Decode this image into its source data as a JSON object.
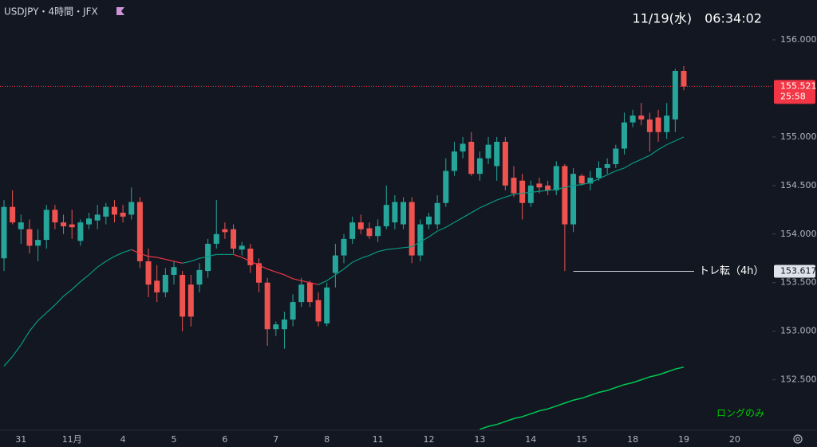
{
  "chart_data": {
    "type": "candlestick",
    "title": "USDJPY・4時間・JFX",
    "subtitle": "11/19(水)　06:34:02",
    "up_color": "#26a69a",
    "down_color": "#ef5350",
    "ylim": [
      151.98,
      156.41
    ],
    "yticks": [
      {
        "value": 152.5,
        "label": "152.500"
      },
      {
        "value": 153,
        "label": "153.000"
      },
      {
        "value": 153.5,
        "label": "153.500"
      },
      {
        "value": 154,
        "label": "154.000"
      },
      {
        "value": 154.5,
        "label": "154.500"
      },
      {
        "value": 155,
        "label": "155.000"
      },
      {
        "value": 156,
        "label": "156.000"
      }
    ],
    "x_labels": [
      "31",
      "11月",
      "4",
      "5",
      "6",
      "7",
      "8",
      "11",
      "12",
      "13",
      "14",
      "15",
      "18",
      "19",
      "20"
    ],
    "open": [
      153.75,
      154.28,
      154.05,
      154.05,
      153.88,
      153.94,
      154.25,
      154.12,
      154.1,
      153.93,
      154.1,
      154.14,
      154.18,
      154.28,
      154.22,
      154.2,
      154.33,
      153.72,
      153.52,
      153.4,
      153.58,
      153.58,
      153.48,
      153.48,
      153.62,
      153.9,
      154.05,
      154.05,
      153.84,
      153.85,
      153.7,
      153.5,
      153.02,
      153.02,
      153.12,
      153.3,
      153.5,
      153.32,
      153.08,
      153.6,
      153.78,
      153.95,
      154.12,
      154.06,
      153.98,
      154.08,
      154.12,
      154.1,
      154.33,
      153.78,
      154.1,
      154.1,
      154.32,
      154.65,
      154.85,
      154.95,
      154.62,
      154.78,
      154.7,
      154.95,
      154.58,
      154.55,
      154.32,
      154.52,
      154.5,
      154.45,
      154.7,
      154.1,
      154.6,
      154.52,
      154.58,
      154.68,
      154.72,
      154.88,
      155.15,
      155.22,
      155.18,
      155.2,
      155.05,
      155.18,
      155.68
    ],
    "high": [
      154.35,
      154.45,
      154.2,
      154.15,
      154.05,
      154.3,
      154.3,
      154.2,
      154.25,
      154.15,
      154.22,
      154.3,
      154.32,
      154.35,
      154.3,
      154.48,
      154.38,
      153.85,
      153.68,
      153.65,
      153.72,
      153.62,
      153.58,
      153.7,
      153.95,
      154.35,
      154.12,
      154.1,
      153.92,
      153.9,
      153.75,
      153.55,
      153.1,
      153.2,
      153.38,
      153.55,
      153.52,
      153.4,
      153.5,
      153.9,
      154.0,
      154.18,
      154.2,
      154.12,
      154.15,
      154.5,
      154.4,
      154.38,
      154.38,
      154.15,
      154.22,
      154.4,
      154.78,
      154.95,
      155.0,
      155.05,
      154.85,
      155.0,
      155.0,
      155.0,
      154.7,
      154.62,
      154.55,
      154.58,
      154.55,
      154.75,
      154.72,
      154.68,
      154.62,
      154.65,
      154.75,
      154.78,
      154.92,
      155.25,
      155.28,
      155.35,
      155.25,
      155.28,
      155.35,
      155.7,
      155.73
    ],
    "low": [
      153.62,
      154.1,
      153.9,
      153.8,
      153.72,
      153.85,
      154.05,
      154.0,
      153.95,
      153.88,
      154.05,
      154.05,
      154.1,
      154.12,
      154.12,
      154.15,
      153.65,
      153.35,
      153.3,
      153.35,
      153.48,
      153.0,
      153.05,
      153.4,
      153.55,
      153.85,
      153.95,
      153.8,
      153.78,
      153.6,
      153.4,
      152.85,
      152.95,
      152.82,
      153.05,
      153.25,
      153.25,
      153.05,
      153.05,
      153.45,
      153.7,
      153.9,
      154.0,
      153.95,
      153.92,
      154.05,
      154.05,
      154.05,
      153.7,
      153.72,
      154.05,
      154.05,
      154.28,
      154.6,
      154.78,
      154.6,
      154.55,
      154.72,
      154.55,
      154.45,
      154.38,
      154.15,
      154.28,
      154.42,
      154.4,
      154.4,
      153.62,
      154.02,
      154.5,
      154.45,
      154.55,
      154.62,
      154.68,
      154.82,
      155.1,
      155.12,
      154.85,
      154.95,
      154.98,
      155.05,
      155.48
    ],
    "close": [
      154.28,
      154.12,
      154.12,
      153.88,
      153.94,
      154.25,
      154.12,
      154.08,
      154.07,
      154.12,
      154.16,
      154.2,
      154.28,
      154.2,
      154.18,
      154.33,
      153.72,
      153.48,
      153.4,
      153.58,
      153.66,
      153.15,
      153.15,
      153.63,
      153.9,
      154.0,
      154.02,
      153.85,
      153.88,
      153.68,
      153.5,
      153.02,
      153.07,
      153.12,
      153.3,
      153.48,
      153.3,
      153.1,
      153.45,
      153.78,
      153.95,
      154.12,
      154.05,
      153.98,
      154.08,
      154.3,
      154.33,
      154.33,
      153.78,
      154.1,
      154.18,
      154.32,
      154.65,
      154.85,
      154.93,
      154.62,
      154.78,
      154.92,
      154.95,
      154.5,
      154.42,
      154.32,
      154.5,
      154.48,
      154.45,
      154.7,
      154.1,
      154.62,
      154.52,
      154.58,
      154.68,
      154.72,
      154.88,
      155.15,
      155.22,
      155.18,
      155.05,
      155.05,
      155.22,
      155.68,
      155.52
    ],
    "series": [
      {
        "color": "#089981",
        "falling_color": "#f23645",
        "values": [
          152.64,
          152.74,
          152.86,
          153.0,
          153.11,
          153.19,
          153.27,
          153.36,
          153.43,
          153.51,
          153.58,
          153.66,
          153.72,
          153.77,
          153.81,
          153.84,
          153.8,
          153.77,
          153.76,
          153.74,
          153.72,
          153.7,
          153.72,
          153.75,
          153.77,
          153.79,
          153.79,
          153.79,
          153.76,
          153.72,
          153.68,
          153.64,
          153.61,
          153.58,
          153.54,
          153.52,
          153.5,
          153.48,
          153.52,
          153.58,
          153.64,
          153.71,
          153.75,
          153.78,
          153.82,
          153.84,
          153.85,
          153.86,
          153.87,
          153.92,
          153.97,
          154.03,
          154.07,
          154.12,
          154.17,
          154.22,
          154.27,
          154.31,
          154.35,
          154.38,
          154.41,
          154.42,
          154.43,
          154.44,
          154.45,
          154.46,
          154.48,
          154.5,
          154.51,
          154.53,
          154.57,
          154.61,
          154.65,
          154.68,
          154.73,
          154.77,
          154.81,
          154.87,
          154.92,
          154.96,
          155.0
        ]
      },
      {
        "color": "#00c853",
        "values": [
          null,
          null,
          null,
          null,
          null,
          null,
          null,
          null,
          null,
          null,
          null,
          null,
          null,
          null,
          null,
          null,
          null,
          null,
          null,
          null,
          null,
          null,
          null,
          null,
          null,
          null,
          null,
          null,
          null,
          null,
          null,
          null,
          null,
          null,
          null,
          null,
          null,
          null,
          null,
          null,
          null,
          null,
          null,
          null,
          null,
          null,
          null,
          null,
          null,
          null,
          null,
          null,
          null,
          null,
          null,
          null,
          151.99,
          152.02,
          152.04,
          152.07,
          152.1,
          152.12,
          152.15,
          152.18,
          152.2,
          152.23,
          152.26,
          152.29,
          152.31,
          152.34,
          152.37,
          152.39,
          152.42,
          152.45,
          152.47,
          152.5,
          152.53,
          152.55,
          152.58,
          152.61,
          152.63
        ]
      }
    ],
    "last_price": {
      "value": 155.521,
      "label": "155.521",
      "countdown": "25:58",
      "color": "#f23645"
    },
    "annotations": [
      {
        "text": "トレ転（4h）",
        "value": 153.617,
        "label": "153.617",
        "start_index": 67
      },
      {
        "text": "ロングのみ",
        "color": "#00c800"
      }
    ]
  }
}
